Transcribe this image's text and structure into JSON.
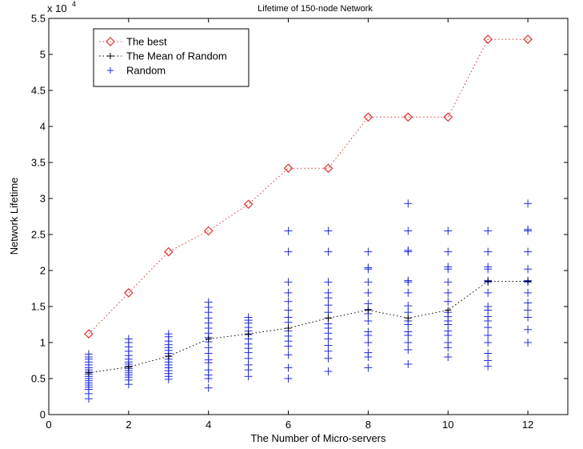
{
  "chart_data": {
    "type": "scatter",
    "title": "Lifetime of 150-node Network",
    "xlabel": "The Number of Micro-servers",
    "ylabel": "Network Lifetime",
    "y_multiplier_label": {
      "base": "x 10",
      "exponent": "4"
    },
    "xlim": [
      0,
      13
    ],
    "ylim": [
      0,
      5.5
    ],
    "xticks": [
      "0",
      "2",
      "4",
      "6",
      "8",
      "10",
      "12"
    ],
    "xtick_values": [
      0,
      2,
      4,
      6,
      8,
      10,
      12
    ],
    "yticks": [
      "0",
      "0.5",
      "1",
      "1.5",
      "2",
      "2.5",
      "3",
      "3.5",
      "4",
      "4.5",
      "5",
      "5.5"
    ],
    "ytick_values": [
      0,
      0.5,
      1,
      1.5,
      2,
      2.5,
      3,
      3.5,
      4,
      4.5,
      5,
      5.5
    ],
    "grid": false,
    "legend_position": "top-left",
    "series": [
      {
        "name": "The best",
        "style": "dotted-line-diamond",
        "color": "#e03030",
        "x": [
          1,
          2,
          3,
          4,
          5,
          6,
          7,
          8,
          9,
          10,
          11,
          12
        ],
        "y": [
          1.12,
          1.69,
          2.26,
          2.55,
          2.92,
          3.42,
          3.42,
          4.13,
          4.13,
          4.13,
          5.21,
          5.21
        ]
      },
      {
        "name": "The Mean of Random",
        "style": "dotted-line-plus",
        "color": "#000000",
        "x": [
          1,
          2,
          3,
          4,
          5,
          6,
          7,
          8,
          9,
          10,
          11,
          12
        ],
        "y": [
          0.58,
          0.66,
          0.81,
          1.05,
          1.12,
          1.2,
          1.34,
          1.45,
          1.34,
          1.45,
          1.85,
          1.85
        ]
      },
      {
        "name": "Random",
        "style": "plus-marker",
        "color": "#1f2ee0",
        "points": [
          {
            "x": 1,
            "y": [
              0.22,
              0.29,
              0.35,
              0.38,
              0.41,
              0.44,
              0.47,
              0.5,
              0.53,
              0.56,
              0.59,
              0.62,
              0.65,
              0.69,
              0.73,
              0.77,
              0.8,
              0.84
            ]
          },
          {
            "x": 2,
            "y": [
              0.42,
              0.48,
              0.52,
              0.55,
              0.58,
              0.61,
              0.64,
              0.67,
              0.7,
              0.73,
              0.77,
              0.82,
              0.88,
              0.94,
              1.0,
              1.05
            ]
          },
          {
            "x": 3,
            "y": [
              0.49,
              0.53,
              0.57,
              0.61,
              0.65,
              0.69,
              0.73,
              0.77,
              0.81,
              0.85,
              0.89,
              0.93,
              0.97,
              1.02,
              1.08,
              1.12
            ]
          },
          {
            "x": 4,
            "y": [
              0.37,
              0.5,
              0.55,
              0.62,
              0.72,
              0.76,
              0.85,
              0.93,
              1.01,
              1.07,
              1.13,
              1.2,
              1.27,
              1.34,
              1.42,
              1.49,
              1.56
            ]
          },
          {
            "x": 5,
            "y": [
              0.53,
              0.62,
              0.69,
              0.78,
              0.86,
              0.92,
              0.98,
              1.05,
              1.11,
              1.16,
              1.21,
              1.27,
              1.31,
              1.35
            ]
          },
          {
            "x": 6,
            "y": [
              0.5,
              0.65,
              0.83,
              0.95,
              1.02,
              1.09,
              1.16,
              1.28,
              1.35,
              1.45,
              1.57,
              1.69,
              1.84,
              2.26,
              2.55
            ]
          },
          {
            "x": 7,
            "y": [
              0.6,
              0.78,
              0.88,
              0.96,
              1.05,
              1.13,
              1.2,
              1.26,
              1.34,
              1.42,
              1.52,
              1.62,
              1.69,
              1.84,
              2.26,
              2.55
            ]
          },
          {
            "x": 8,
            "y": [
              0.65,
              0.8,
              0.86,
              1.0,
              1.1,
              1.15,
              1.3,
              1.4,
              1.46,
              1.54,
              1.69,
              1.84,
              2.02,
              2.04,
              2.26
            ]
          },
          {
            "x": 9,
            "y": [
              0.7,
              0.9,
              1.0,
              1.1,
              1.15,
              1.25,
              1.3,
              1.42,
              1.51,
              1.69,
              1.84,
              1.86,
              2.26,
              2.28,
              2.55,
              2.93
            ]
          },
          {
            "x": 10,
            "y": [
              0.8,
              0.93,
              1.0,
              1.1,
              1.16,
              1.25,
              1.3,
              1.36,
              1.42,
              1.57,
              1.69,
              1.84,
              2.02,
              2.05,
              2.26,
              2.55
            ]
          },
          {
            "x": 11,
            "y": [
              0.67,
              0.75,
              0.85,
              1.0,
              1.1,
              1.21,
              1.3,
              1.36,
              1.45,
              1.5,
              1.69,
              1.84,
              1.86,
              2.02,
              2.05,
              2.26,
              2.55
            ]
          },
          {
            "x": 12,
            "y": [
              1.0,
              1.18,
              1.35,
              1.45,
              1.55,
              1.69,
              1.84,
              1.86,
              2.02,
              2.26,
              2.55,
              2.57,
              2.93
            ]
          }
        ]
      }
    ],
    "legend": [
      {
        "label": "The best",
        "marker": "diamond",
        "line": "dotted",
        "color": "#e03030"
      },
      {
        "label": "The Mean of Random",
        "marker": "plus",
        "line": "dotted",
        "color": "#000000"
      },
      {
        "label": "Random",
        "marker": "plus",
        "line": "none",
        "color": "#1f2ee0"
      }
    ]
  }
}
